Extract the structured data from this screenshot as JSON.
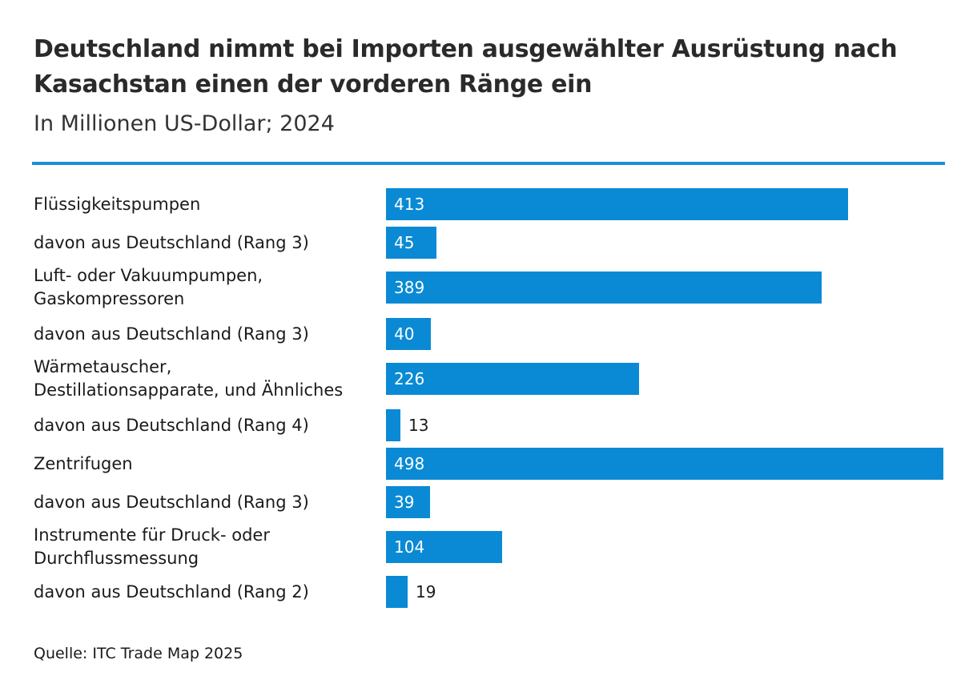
{
  "colors": {
    "bar": "#0a8ad4",
    "rule": "#1a8fd6"
  },
  "chart_data": {
    "type": "bar",
    "orientation": "horizontal",
    "title": "Deutschland nimmt bei Importen ausgewählter Ausrüstung nach Kasachstan einen der vorderen Ränge ein",
    "subtitle": "In Millionen US-Dollar; 2024",
    "xlim": [
      0,
      498
    ],
    "categories": [
      "Flüssigkeitspumpen",
      "davon aus Deutschland (Rang 3)",
      "Luft- oder Vakuumpumpen,\nGaskompressoren",
      "davon aus Deutschland (Rang 3)",
      "Wärmetauscher,\nDestillationsapparate, und Ähnliches",
      "davon aus Deutschland (Rang 4)",
      "Zentrifugen",
      "davon aus Deutschland (Rang 3)",
      "Instrumente für Druck- oder\nDurchflussmessung",
      "davon aus Deutschland (Rang 2)"
    ],
    "values": [
      413,
      45,
      389,
      40,
      226,
      13,
      498,
      39,
      104,
      19
    ],
    "source": "Quelle: ITC Trade Map 2025"
  }
}
